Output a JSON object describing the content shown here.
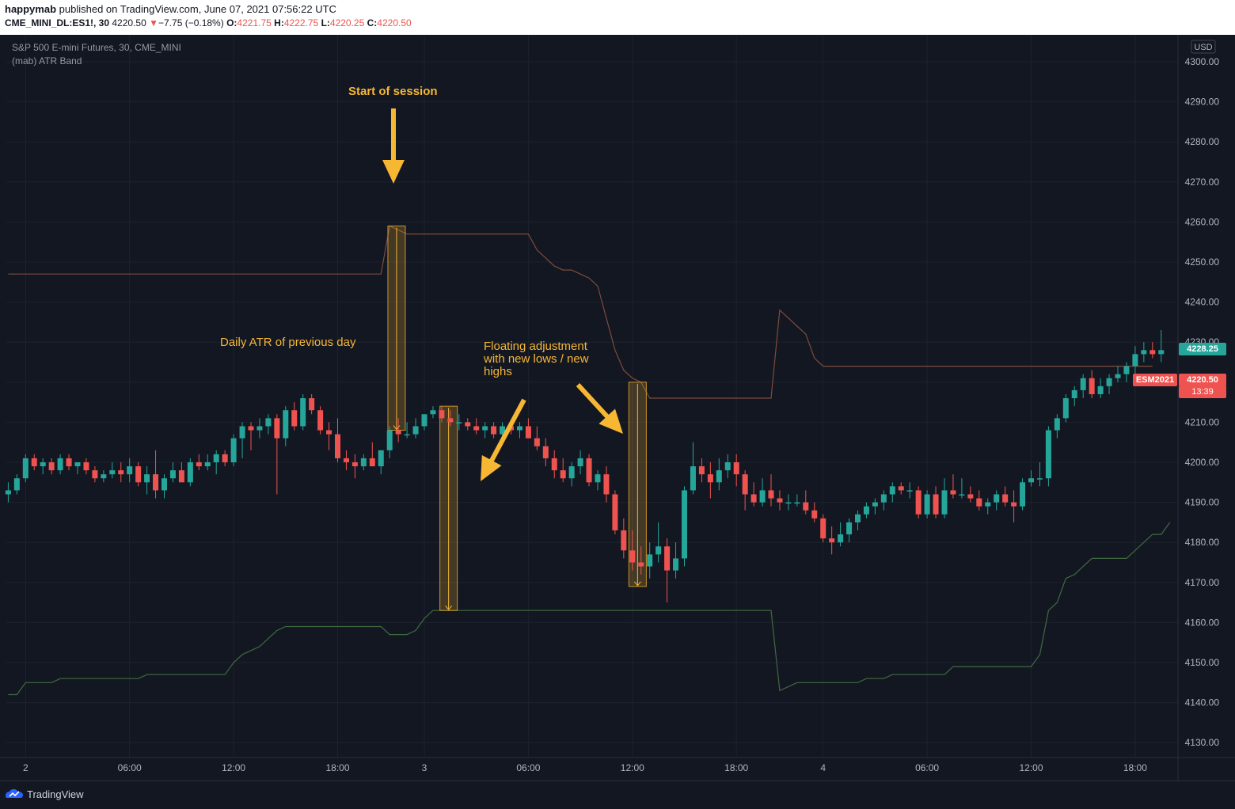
{
  "header": {
    "publisher": "happymab",
    "published_text": "published on TradingView.com, June 07, 2021 07:56:22 UTC",
    "symbol": "CME_MINI_DL:ES1!, 30",
    "last": "4220.50",
    "change_arrow": "▼",
    "change": "−7.75 (−0.18%)",
    "o_label": "O:",
    "o_value": "4221.75",
    "h_label": "H:",
    "h_value": "4222.75",
    "l_label": "L:",
    "l_value": "4220.25",
    "c_label": "C:",
    "c_value": "4220.50"
  },
  "legend": {
    "series_title": "S&P 500 E-mini Futures, 30, CME_MINI",
    "indicator": "(mab) ATR Band"
  },
  "annotations": {
    "start_session": "Start of session",
    "daily_atr": "Daily ATR of previous day",
    "floating": "Floating adjustment\nwith new lows / new\nhighs"
  },
  "price_tags": {
    "current": "4228.25",
    "symbol_label": "ESM2021",
    "close": "4220.50",
    "countdown": "13:39"
  },
  "footer": {
    "brand": "TradingView"
  },
  "colors": {
    "up": "#26a69a",
    "down": "#ef5350",
    "upper_band": "#7e4b3c",
    "lower_band": "#3f6a40",
    "annotation": "#f7b733",
    "background": "#131722"
  },
  "chart_data": {
    "type": "candlestick",
    "currency": "USD",
    "ylim": [
      4125,
      4305
    ],
    "y_ticks": [
      "4300.00",
      "4290.00",
      "4280.00",
      "4270.00",
      "4260.00",
      "4250.00",
      "4240.00",
      "4230.00",
      "4220.00",
      "4210.00",
      "4200.00",
      "4190.00",
      "4180.00",
      "4170.00",
      "4160.00",
      "4150.00",
      "4140.00",
      "4130.00"
    ],
    "x_ticks": [
      {
        "label": "2",
        "bar": 2
      },
      {
        "label": "06:00",
        "bar": 14
      },
      {
        "label": "12:00",
        "bar": 26
      },
      {
        "label": "18:00",
        "bar": 38
      },
      {
        "label": "3",
        "bar": 48
      },
      {
        "label": "06:00",
        "bar": 60
      },
      {
        "label": "12:00",
        "bar": 72
      },
      {
        "label": "18:00",
        "bar": 84
      },
      {
        "label": "4",
        "bar": 94
      },
      {
        "label": "06:00",
        "bar": 106
      },
      {
        "label": "12:00",
        "bar": 118
      },
      {
        "label": "18:00",
        "bar": 130
      }
    ],
    "candles_ohlc": [
      [
        4192,
        4195,
        4190,
        4193
      ],
      [
        4193,
        4197,
        4192,
        4196
      ],
      [
        4196,
        4202,
        4195,
        4201
      ],
      [
        4201,
        4202,
        4198,
        4199
      ],
      [
        4199,
        4201,
        4197,
        4200
      ],
      [
        4200,
        4201,
        4197,
        4198
      ],
      [
        4198,
        4202,
        4197,
        4201
      ],
      [
        4201,
        4202,
        4198,
        4199
      ],
      [
        4199,
        4200,
        4197,
        4200
      ],
      [
        4200,
        4201,
        4197,
        4198
      ],
      [
        4198,
        4199,
        4195,
        4196
      ],
      [
        4196,
        4198,
        4195,
        4197
      ],
      [
        4197,
        4200,
        4196,
        4198
      ],
      [
        4198,
        4200,
        4195,
        4197
      ],
      [
        4197,
        4201,
        4195,
        4199
      ],
      [
        4199,
        4200,
        4194,
        4195
      ],
      [
        4195,
        4199,
        4192,
        4197
      ],
      [
        4197,
        4203,
        4191,
        4193
      ],
      [
        4193,
        4197,
        4191,
        4196
      ],
      [
        4196,
        4200,
        4195,
        4198
      ],
      [
        4198,
        4200,
        4195,
        4195
      ],
      [
        4195,
        4201,
        4194,
        4200
      ],
      [
        4200,
        4202,
        4198,
        4199
      ],
      [
        4199,
        4202,
        4198,
        4200
      ],
      [
        4200,
        4203,
        4197,
        4202
      ],
      [
        4202,
        4203,
        4199,
        4200
      ],
      [
        4200,
        4207,
        4199,
        4206
      ],
      [
        4206,
        4210,
        4201,
        4209
      ],
      [
        4209,
        4210,
        4203,
        4208
      ],
      [
        4208,
        4211,
        4206,
        4209
      ],
      [
        4209,
        4212,
        4207,
        4211
      ],
      [
        4211,
        4212,
        4192,
        4206
      ],
      [
        4206,
        4214,
        4204,
        4213
      ],
      [
        4213,
        4215,
        4208,
        4209
      ],
      [
        4209,
        4217,
        4208,
        4216
      ],
      [
        4216,
        4217,
        4212,
        4213
      ],
      [
        4213,
        4214,
        4207,
        4208
      ],
      [
        4208,
        4210,
        4203,
        4207
      ],
      [
        4207,
        4211,
        4200,
        4201
      ],
      [
        4201,
        4203,
        4198,
        4200
      ],
      [
        4200,
        4202,
        4196,
        4199
      ],
      [
        4199,
        4202,
        4198,
        4201
      ],
      [
        4201,
        4205,
        4199,
        4199
      ],
      [
        4199,
        4203,
        4197,
        4203
      ],
      [
        4203,
        4209,
        4201,
        4208
      ],
      [
        4208,
        4211,
        4205,
        4207
      ],
      [
        4207,
        4210,
        4206,
        4207
      ],
      [
        4207,
        4211,
        4206,
        4209
      ],
      [
        4209,
        4212,
        4208,
        4212
      ],
      [
        4212,
        4214,
        4211,
        4213
      ],
      [
        4213,
        4214,
        4210,
        4211
      ],
      [
        4211,
        4213,
        4209,
        4210
      ],
      [
        4210,
        4212,
        4208,
        4210
      ],
      [
        4210,
        4211,
        4208,
        4209
      ],
      [
        4209,
        4211,
        4207,
        4208
      ],
      [
        4208,
        4210,
        4206,
        4209
      ],
      [
        4209,
        4210,
        4206,
        4207
      ],
      [
        4207,
        4210,
        4206,
        4209
      ],
      [
        4209,
        4210,
        4207,
        4208
      ],
      [
        4208,
        4210,
        4206,
        4209
      ],
      [
        4209,
        4211,
        4206,
        4206
      ],
      [
        4206,
        4209,
        4203,
        4204
      ],
      [
        4204,
        4206,
        4199,
        4201
      ],
      [
        4201,
        4203,
        4196,
        4198
      ],
      [
        4198,
        4201,
        4195,
        4196
      ],
      [
        4196,
        4200,
        4194,
        4199
      ],
      [
        4199,
        4203,
        4197,
        4201
      ],
      [
        4201,
        4202,
        4194,
        4195
      ],
      [
        4195,
        4198,
        4193,
        4197
      ],
      [
        4197,
        4199,
        4190,
        4192
      ],
      [
        4192,
        4193,
        4182,
        4183
      ],
      [
        4183,
        4186,
        4176,
        4178
      ],
      [
        4178,
        4183,
        4173,
        4175
      ],
      [
        4175,
        4179,
        4172,
        4174
      ],
      [
        4174,
        4180,
        4171,
        4177
      ],
      [
        4177,
        4185,
        4175,
        4179
      ],
      [
        4179,
        4181,
        4165,
        4173
      ],
      [
        4173,
        4180,
        4171,
        4176
      ],
      [
        4176,
        4194,
        4174,
        4193
      ],
      [
        4193,
        4205,
        4192,
        4199
      ],
      [
        4199,
        4201,
        4195,
        4197
      ],
      [
        4197,
        4200,
        4191,
        4195
      ],
      [
        4195,
        4201,
        4193,
        4198
      ],
      [
        4198,
        4202,
        4196,
        4200
      ],
      [
        4200,
        4202,
        4194,
        4197
      ],
      [
        4197,
        4198,
        4188,
        4192
      ],
      [
        4192,
        4195,
        4189,
        4190
      ],
      [
        4190,
        4196,
        4189,
        4193
      ],
      [
        4193,
        4197,
        4189,
        4191
      ],
      [
        4191,
        4193,
        4188,
        4190
      ],
      [
        4190,
        4192,
        4188,
        4190
      ],
      [
        4190,
        4192,
        4189,
        4190
      ],
      [
        4190,
        4193,
        4187,
        4188
      ],
      [
        4188,
        4190,
        4185,
        4186
      ],
      [
        4186,
        4187,
        4180,
        4181
      ],
      [
        4181,
        4184,
        4177,
        4180
      ],
      [
        4180,
        4185,
        4179,
        4182
      ],
      [
        4182,
        4186,
        4180,
        4185
      ],
      [
        4185,
        4188,
        4183,
        4187
      ],
      [
        4187,
        4190,
        4186,
        4189
      ],
      [
        4189,
        4191,
        4187,
        4190
      ],
      [
        4190,
        4193,
        4188,
        4192
      ],
      [
        4192,
        4195,
        4190,
        4194
      ],
      [
        4194,
        4195,
        4192,
        4193
      ],
      [
        4193,
        4195,
        4191,
        4193
      ],
      [
        4193,
        4194,
        4186,
        4187
      ],
      [
        4187,
        4193,
        4186,
        4192
      ],
      [
        4192,
        4194,
        4186,
        4187
      ],
      [
        4187,
        4196,
        4186,
        4193
      ],
      [
        4193,
        4197,
        4191,
        4192
      ],
      [
        4192,
        4196,
        4191,
        4192
      ],
      [
        4192,
        4194,
        4190,
        4191
      ],
      [
        4191,
        4193,
        4188,
        4189
      ],
      [
        4189,
        4191,
        4187,
        4190
      ],
      [
        4190,
        4193,
        4188,
        4192
      ],
      [
        4192,
        4194,
        4189,
        4190
      ],
      [
        4190,
        4193,
        4185,
        4189
      ],
      [
        4189,
        4196,
        4188,
        4195
      ],
      [
        4195,
        4198,
        4194,
        4196
      ],
      [
        4196,
        4200,
        4194,
        4196
      ],
      [
        4196,
        4209,
        4194,
        4208
      ],
      [
        4208,
        4212,
        4206,
        4211
      ],
      [
        4211,
        4217,
        4210,
        4216
      ],
      [
        4216,
        4219,
        4214,
        4218
      ],
      [
        4218,
        4222,
        4216,
        4221
      ],
      [
        4221,
        4223,
        4216,
        4217
      ],
      [
        4217,
        4221,
        4216,
        4219
      ],
      [
        4219,
        4222,
        4217,
        4221
      ],
      [
        4221,
        4224,
        4220,
        4222
      ],
      [
        4222,
        4225,
        4220,
        4224
      ],
      [
        4224,
        4229,
        4222,
        4227
      ],
      [
        4227,
        4230,
        4225,
        4228
      ],
      [
        4228,
        4230,
        4226,
        4227
      ],
      [
        4227,
        4233,
        4225,
        4228
      ]
    ],
    "upper_band": [
      [
        0,
        4247
      ],
      [
        43,
        4247
      ],
      [
        44,
        4259
      ],
      [
        45,
        4258
      ],
      [
        46,
        4257
      ],
      [
        60,
        4257
      ],
      [
        61,
        4253
      ],
      [
        62,
        4251
      ],
      [
        63,
        4249
      ],
      [
        64,
        4248
      ],
      [
        65,
        4248
      ],
      [
        66,
        4247
      ],
      [
        67,
        4246
      ],
      [
        68,
        4244
      ],
      [
        69,
        4236
      ],
      [
        70,
        4228
      ],
      [
        71,
        4223
      ],
      [
        72,
        4221
      ],
      [
        73,
        4220
      ],
      [
        74,
        4216
      ],
      [
        88,
        4216
      ],
      [
        89,
        4238
      ],
      [
        90,
        4236
      ],
      [
        91,
        4234
      ],
      [
        92,
        4232
      ],
      [
        93,
        4226
      ],
      [
        94,
        4224
      ],
      [
        132,
        4224
      ]
    ],
    "lower_band": [
      [
        0,
        4142
      ],
      [
        1,
        4142
      ],
      [
        2,
        4145
      ],
      [
        5,
        4145
      ],
      [
        6,
        4146
      ],
      [
        15,
        4146
      ],
      [
        16,
        4147
      ],
      [
        25,
        4147
      ],
      [
        26,
        4150
      ],
      [
        27,
        4152
      ],
      [
        28,
        4153
      ],
      [
        29,
        4154
      ],
      [
        30,
        4156
      ],
      [
        31,
        4158
      ],
      [
        32,
        4159
      ],
      [
        43,
        4159
      ],
      [
        44,
        4157
      ],
      [
        46,
        4157
      ],
      [
        47,
        4158
      ],
      [
        48,
        4161
      ],
      [
        49,
        4163
      ],
      [
        88,
        4163
      ],
      [
        89,
        4143
      ],
      [
        90,
        4144
      ],
      [
        91,
        4145
      ],
      [
        98,
        4145
      ],
      [
        99,
        4146
      ],
      [
        101,
        4146
      ],
      [
        102,
        4147
      ],
      [
        108,
        4147
      ],
      [
        109,
        4149
      ],
      [
        118,
        4149
      ],
      [
        119,
        4152
      ],
      [
        120,
        4163
      ],
      [
        121,
        4165
      ],
      [
        122,
        4171
      ],
      [
        123,
        4172
      ],
      [
        124,
        4174
      ],
      [
        125,
        4176
      ],
      [
        129,
        4176
      ],
      [
        130,
        4178
      ],
      [
        131,
        4180
      ],
      [
        132,
        4182
      ],
      [
        133,
        4182
      ],
      [
        134,
        4185
      ]
    ],
    "atr_boxes": [
      {
        "bar": 44.8,
        "from": 4259,
        "to": 4208
      },
      {
        "bar": 50.8,
        "from": 4214,
        "to": 4163
      },
      {
        "bar": 72.6,
        "from": 4220,
        "to": 4169
      }
    ]
  }
}
